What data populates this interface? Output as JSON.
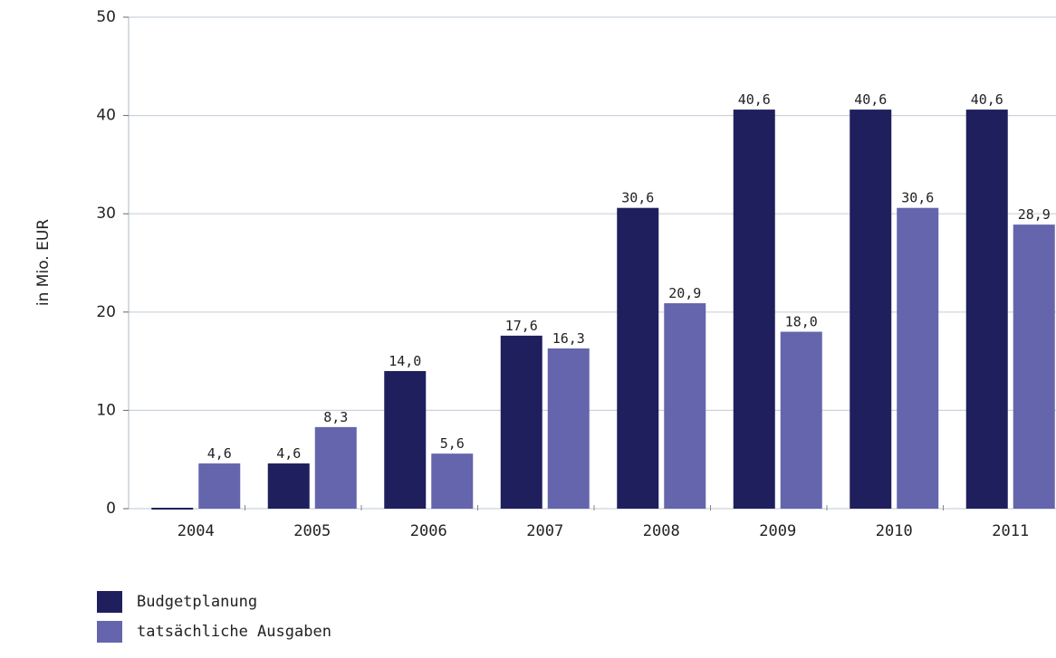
{
  "chart_data": {
    "type": "bar",
    "categories": [
      "2004",
      "2005",
      "2006",
      "2007",
      "2008",
      "2009",
      "2010",
      "2011"
    ],
    "series": [
      {
        "name": "Budgetplanung",
        "color": "#1f1f5e",
        "values": [
          0,
          4.6,
          14.0,
          17.6,
          30.6,
          40.6,
          40.6,
          40.6
        ],
        "labels": [
          "",
          "4,6",
          "14,0",
          "17,6",
          "30,6",
          "40,6",
          "40,6",
          "40,6"
        ]
      },
      {
        "name": "tatsächliche Ausgaben",
        "color": "#6465ad",
        "values": [
          4.6,
          8.3,
          5.6,
          16.3,
          20.9,
          18.0,
          30.6,
          28.9
        ],
        "labels": [
          "4,6",
          "8,3",
          "5,6",
          "16,3",
          "20,9",
          "18,0",
          "30,6",
          "28,9"
        ]
      }
    ],
    "ylabel": "in Mio. EUR",
    "ylim": [
      0,
      50
    ],
    "yticks": [
      "0",
      "10",
      "20",
      "30",
      "40",
      "50"
    ],
    "grid": true,
    "legend_position": "bottom-left"
  }
}
